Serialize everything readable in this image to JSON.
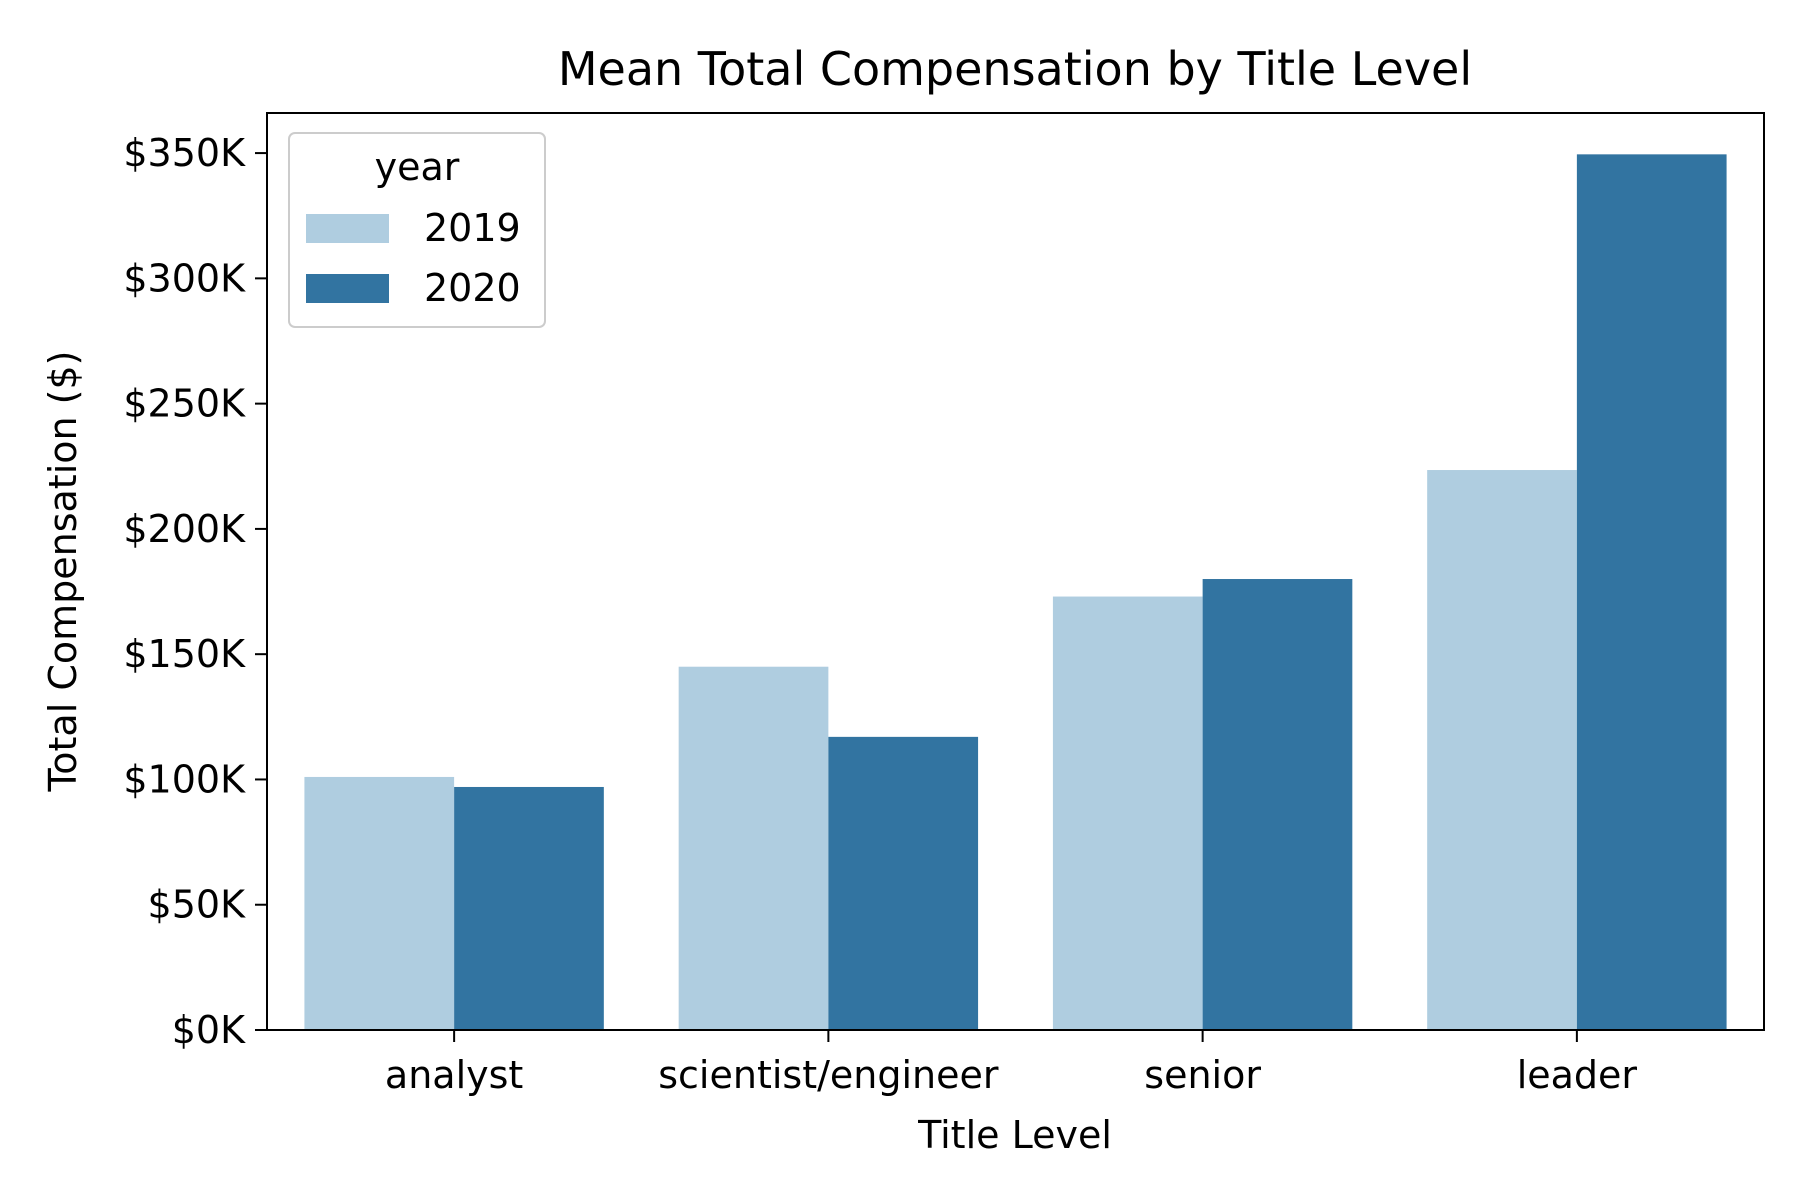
{
  "chart_data": {
    "type": "bar",
    "title": "Mean Total Compensation by Title Level",
    "xlabel": "Title Level",
    "ylabel": "Total Compensation ($)",
    "categories": [
      "analyst",
      "scientist/engineer",
      "senior",
      "leader"
    ],
    "series": [
      {
        "name": "2019",
        "color": "#afcde0",
        "values": [
          101000,
          145000,
          173000,
          223500
        ]
      },
      {
        "name": "2020",
        "color": "#3274a1",
        "values": [
          97000,
          117000,
          180000,
          349500
        ]
      }
    ],
    "ylim": [
      0,
      366000
    ],
    "yticks": [
      0,
      50000,
      100000,
      150000,
      200000,
      250000,
      300000,
      350000
    ],
    "ytick_labels": [
      "$0K",
      "$50K",
      "$100K",
      "$150K",
      "$200K",
      "$250K",
      "$300K",
      "$350K"
    ],
    "legend": {
      "title": "year",
      "position": "top-left"
    },
    "grid": false
  }
}
